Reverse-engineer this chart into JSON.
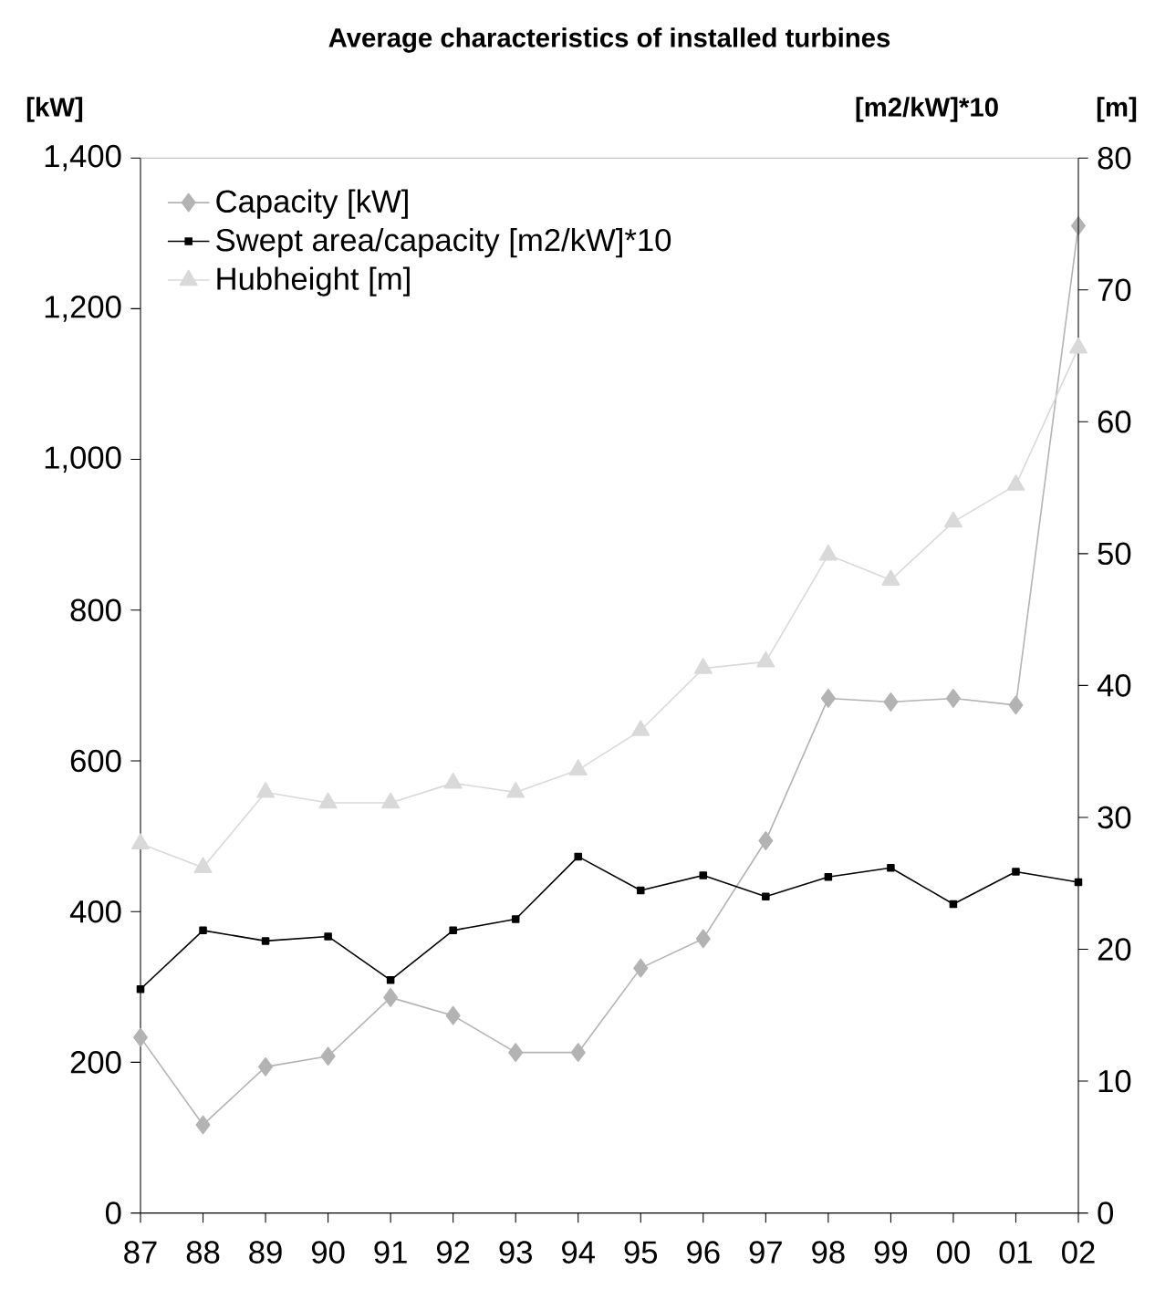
{
  "chart_data": {
    "type": "line",
    "title": "Average characteristics of installed turbines",
    "ylabel": "[kW]",
    "y2label": "[m]",
    "annotations": [
      "[m2/kW]*10"
    ],
    "categories": [
      "87",
      "88",
      "89",
      "90",
      "91",
      "92",
      "93",
      "94",
      "95",
      "96",
      "97",
      "98",
      "99",
      "00",
      "01",
      "02"
    ],
    "series": [
      {
        "name": "Capacity [kW]",
        "color": "#b3b3b3",
        "marker": "diamond",
        "values": [
          233,
          117,
          194,
          208,
          286,
          262,
          213,
          213,
          325,
          364,
          494,
          683,
          678,
          683,
          674,
          1310
        ]
      },
      {
        "name": "Swept area/capacity [m2/kW]*10",
        "color": "#000000",
        "marker": "square",
        "values": [
          297,
          375,
          361,
          367,
          309,
          375,
          390,
          473,
          428,
          448,
          420,
          446,
          458,
          410,
          453,
          439
        ]
      },
      {
        "name": "Hubheight [m]",
        "color": "#d9d9d9",
        "marker": "triangle",
        "axis": "y2",
        "values": [
          28.0,
          26.2,
          31.9,
          31.1,
          31.1,
          32.6,
          31.9,
          33.6,
          36.6,
          41.3,
          41.8,
          49.9,
          48.0,
          52.4,
          55.2,
          65.6
        ]
      }
    ],
    "ylim": [
      0,
      1400
    ],
    "yticks": [
      0,
      200,
      400,
      600,
      800,
      {
        "value": 1000,
        "label": "1,000"
      },
      {
        "value": 1200,
        "label": "1,200"
      },
      {
        "value": 1400,
        "label": "1,400"
      }
    ],
    "y2lim": [
      0,
      80
    ],
    "y2ticks": [
      0,
      10,
      20,
      30,
      40,
      50,
      60,
      70,
      80
    ],
    "grid": false,
    "legend": "top left"
  }
}
